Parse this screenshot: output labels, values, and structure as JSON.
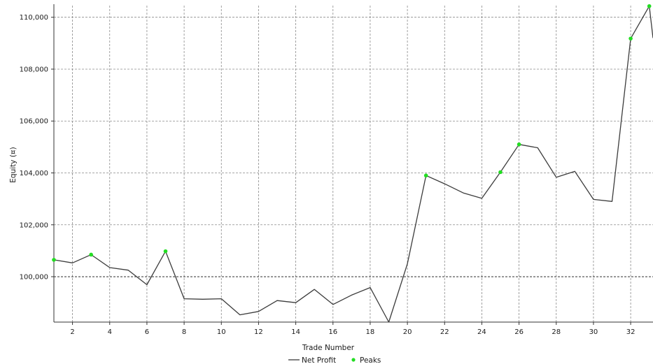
{
  "chart_data": {
    "type": "line",
    "title": "",
    "xlabel": "Trade Number",
    "ylabel": "Equity (¤)",
    "xlim": [
      1,
      33.2
    ],
    "ylim": [
      98250,
      110450
    ],
    "x_ticks": [
      2,
      4,
      6,
      8,
      10,
      12,
      14,
      16,
      18,
      20,
      22,
      24,
      26,
      28,
      30,
      32
    ],
    "x_tick_labels": [
      "2",
      "4",
      "6",
      "8",
      "10",
      "12",
      "14",
      "16",
      "18",
      "20",
      "22",
      "24",
      "26",
      "28",
      "30",
      "32"
    ],
    "y_ticks": [
      100000,
      102000,
      104000,
      106000,
      108000,
      110000
    ],
    "y_tick_labels": [
      "100,000",
      "102,000",
      "104,000",
      "106,000",
      "108,000",
      "110,000"
    ],
    "baseline": 100000,
    "grid": true,
    "legend_position": "bottom-center",
    "series": [
      {
        "name": "Net Profit",
        "color": "#3c3c3c",
        "x": [
          1,
          2,
          3,
          4,
          5,
          6,
          7,
          8,
          9,
          10,
          11,
          12,
          13,
          14,
          15,
          16,
          17,
          18,
          19,
          20,
          21,
          22,
          23,
          24,
          25,
          26,
          27,
          28,
          29,
          30,
          31,
          32,
          33,
          33.2
        ],
        "values": [
          100650,
          100530,
          100850,
          100350,
          100250,
          99690,
          100980,
          99150,
          99130,
          99150,
          98530,
          98660,
          99080,
          99000,
          99510,
          98930,
          99290,
          99580,
          98250,
          100500,
          103900,
          103580,
          103230,
          103020,
          104030,
          105100,
          104970,
          103830,
          104060,
          102980,
          102900,
          109180,
          110430,
          109200
        ]
      },
      {
        "name": "Peaks",
        "color": "#22dd22",
        "x": [
          1,
          3,
          7,
          21,
          25,
          26,
          32,
          33
        ],
        "values": [
          100650,
          100850,
          100980,
          103900,
          104030,
          105100,
          109180,
          110430
        ]
      }
    ]
  }
}
